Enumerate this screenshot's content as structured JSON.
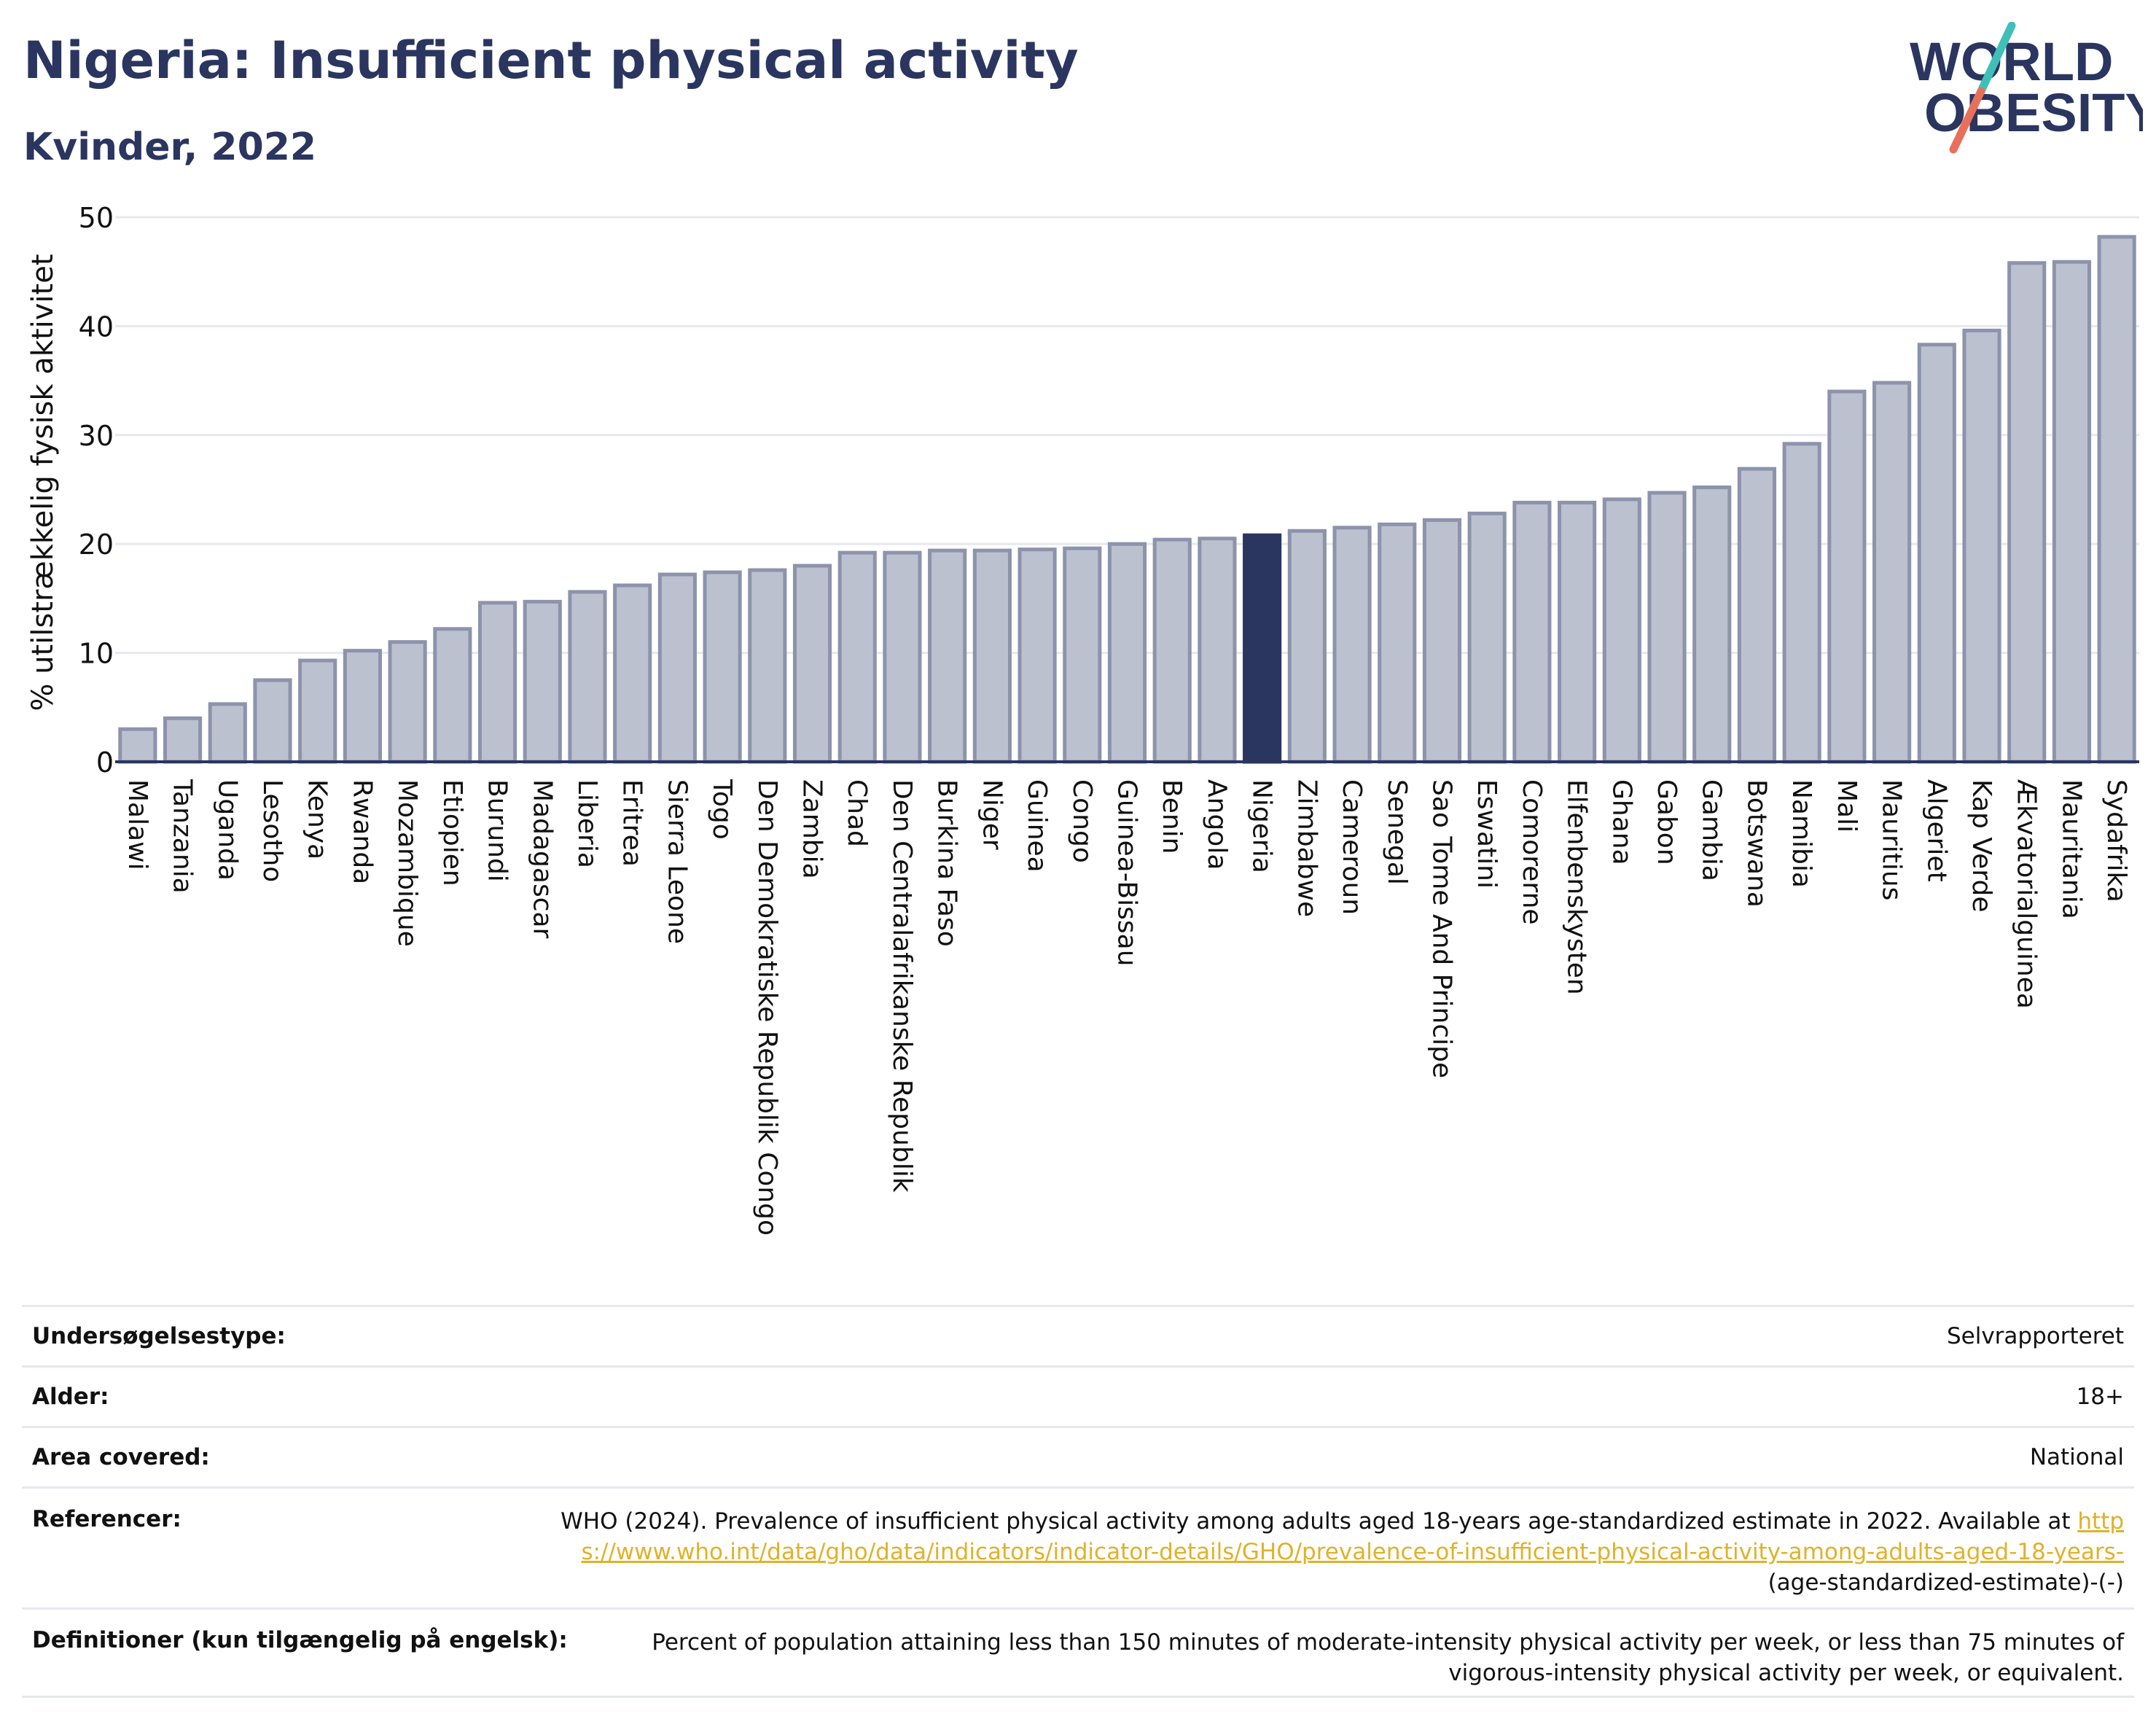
{
  "header": {
    "title": "Nigeria: Insufficient physical activity",
    "subtitle": "Kvinder, 2022"
  },
  "logo": {
    "line1": "WORLD",
    "line2": "OBESITY",
    "colors": {
      "text": "#2a3560",
      "slash_top": "#3fbfb8",
      "slash_bottom": "#e8705a"
    }
  },
  "chart_data": {
    "type": "bar",
    "title": "",
    "ylabel": "% utilstrækkelig fysisk aktivitet",
    "xlabel": "",
    "ylim": [
      0,
      50
    ],
    "yticks": [
      0,
      10,
      20,
      30,
      40,
      50
    ],
    "grid": true,
    "highlight": "Nigeria",
    "colors": {
      "bar": "#bcc1d0",
      "bar_edge": "#8c93ab",
      "highlight": "#2a3560",
      "grid": "#e6e8ee",
      "axis": "#2a3560"
    },
    "categories": [
      "Malawi",
      "Tanzania",
      "Uganda",
      "Lesotho",
      "Kenya",
      "Rwanda",
      "Mozambique",
      "Etiopien",
      "Burundi",
      "Madagascar",
      "Liberia",
      "Eritrea",
      "Sierra Leone",
      "Togo",
      "Den Demokratiske Republik Congo",
      "Zambia",
      "Chad",
      "Den Centralafrikanske Republik",
      "Burkina Faso",
      "Niger",
      "Guinea",
      "Congo",
      "Guinea-Bissau",
      "Benin",
      "Angola",
      "Nigeria",
      "Zimbabwe",
      "Cameroun",
      "Senegal",
      "Sao Tome And Principe",
      "Eswatini",
      "Comorerne",
      "Elfenbenskysten",
      "Ghana",
      "Gabon",
      "Gambia",
      "Botswana",
      "Namibia",
      "Mali",
      "Mauritius",
      "Algeriet",
      "Kap Verde",
      "Ækvatorialguinea",
      "Mauritania",
      "Sydafrika"
    ],
    "values": [
      3.0,
      4.0,
      5.3,
      7.5,
      9.3,
      10.2,
      11.0,
      12.2,
      14.6,
      14.7,
      15.6,
      16.2,
      17.2,
      17.4,
      17.6,
      18.0,
      19.2,
      19.2,
      19.4,
      19.4,
      19.5,
      19.6,
      20.0,
      20.4,
      20.5,
      20.8,
      21.2,
      21.5,
      21.8,
      22.2,
      22.8,
      23.8,
      23.8,
      24.1,
      24.7,
      25.2,
      26.9,
      29.2,
      34.0,
      34.8,
      38.3,
      39.6,
      45.8,
      45.9,
      48.2
    ]
  },
  "metadata": {
    "rows": [
      {
        "label": "Undersøgelsestype:",
        "value": "Selvrapporteret"
      },
      {
        "label": "Alder:",
        "value": "18+"
      },
      {
        "label": "Area covered:",
        "value": "National"
      }
    ],
    "references": {
      "label": "Referencer:",
      "text": "WHO (2024). Prevalence of insufficient physical activity among adults aged 18-years age-standardized estimate in 2022. Available at",
      "link": "https://www.who.int/data/gho/data/indicators/indicator-details/GHO/prevalence-of-insufficient-physical-activity-among-adults-aged-18-years-",
      "suffix": "(age-standardized-estimate)-(-)"
    },
    "definitions": {
      "label": "Definitioner (kun tilgængelig på engelsk):",
      "value": "Percent of population attaining less than 150 minutes of moderate-intensity physical activity per week, or less than 75 minutes of vigorous-intensity physical activity per week, or equivalent."
    }
  }
}
